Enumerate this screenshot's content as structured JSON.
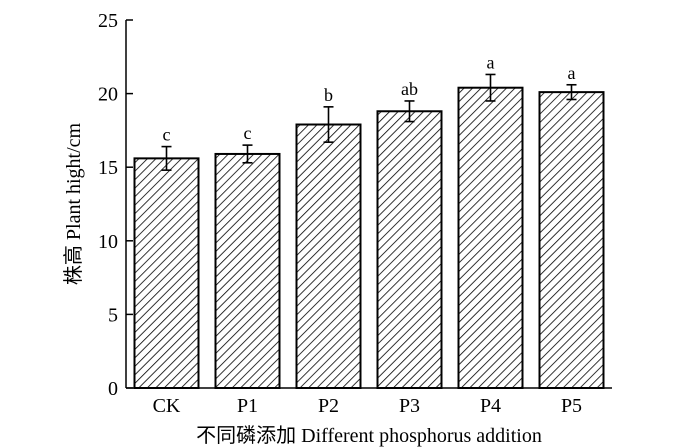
{
  "chart_data": {
    "type": "bar",
    "title": "",
    "xlabel": "不同磷添加 Different phosphorus addition",
    "ylabel": "株高 Plant hight/cm",
    "categories": [
      "CK",
      "P1",
      "P2",
      "P3",
      "P4",
      "P5"
    ],
    "values": [
      15.6,
      15.9,
      17.9,
      18.8,
      20.4,
      20.1
    ],
    "errors": [
      0.8,
      0.6,
      1.2,
      0.7,
      0.9,
      0.5
    ],
    "significance": [
      "c",
      "c",
      "b",
      "ab",
      "a",
      "a"
    ],
    "ylim": [
      0,
      25
    ],
    "yticks": [
      0,
      5,
      10,
      15,
      20,
      25
    ],
    "grid": false,
    "bar_pattern": "diagonal-hatch",
    "colors": {
      "bar_fill": "#ffffff",
      "hatch": "#000000",
      "edge": "#000000"
    }
  }
}
